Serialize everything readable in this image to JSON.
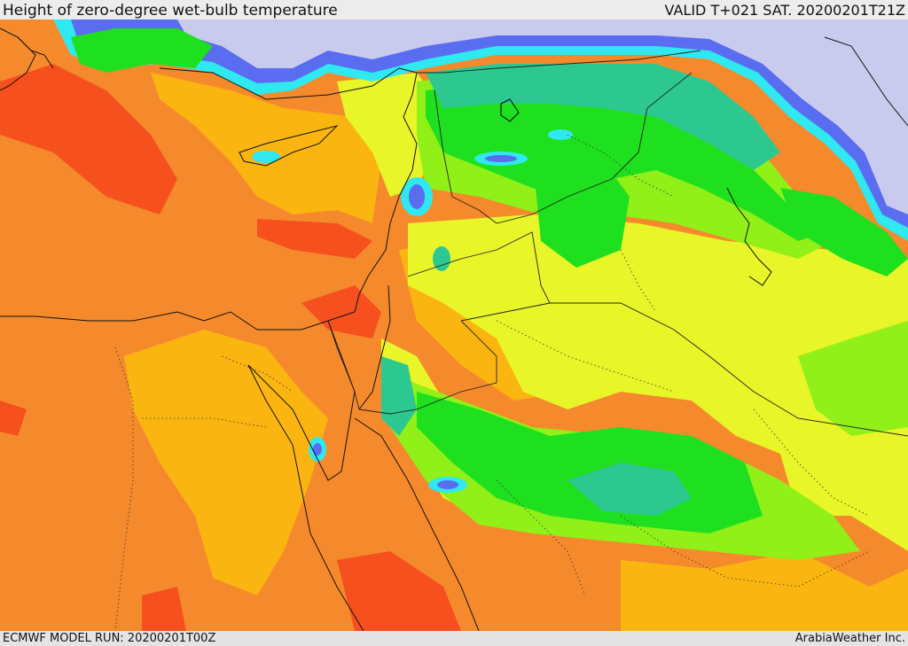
{
  "header": {
    "title": "Height of zero-degree wet-bulb temperature",
    "valid_time": "VALID T+021 SAT. 20200201T21Z"
  },
  "footer": {
    "model_run": "ECMWF MODEL RUN: 20200201T00Z",
    "credit": "ArabiaWeather Inc."
  },
  "map": {
    "colors": {
      "very_low": "#c8cbee",
      "low_blue": "#5a6df0",
      "cyan": "#30e8f0",
      "teal": "#2cc890",
      "green": "#1ee01e",
      "light_green": "#90f018",
      "yellow_green": "#e8f528",
      "yellow": "#fbb510",
      "orange": "#f58a2c",
      "red_orange": "#f5501e",
      "red": "#e8321e"
    }
  }
}
